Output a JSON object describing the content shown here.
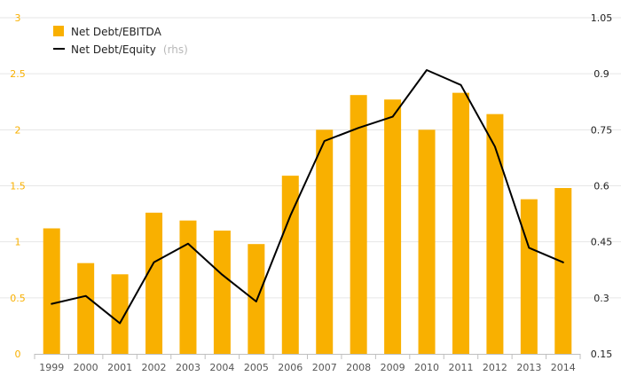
{
  "chart_data": {
    "type": "bar",
    "categories": [
      "1999",
      "2000",
      "2001",
      "2002",
      "2003",
      "2004",
      "2005",
      "2006",
      "2007",
      "2008",
      "2009",
      "2010",
      "2011",
      "2012",
      "2013",
      "2014"
    ],
    "series": [
      {
        "name": "Net Debt/EBITDA",
        "type": "bar",
        "axis": "left",
        "color": "#f9b000",
        "values": [
          1.12,
          0.81,
          0.71,
          1.26,
          1.19,
          1.1,
          0.98,
          1.59,
          2.0,
          2.31,
          2.27,
          2.0,
          2.33,
          2.14,
          1.38,
          1.48
        ]
      },
      {
        "name": "Net Debt/Equity",
        "legend_suffix": "(rhs)",
        "type": "line",
        "axis": "right",
        "color": "#000000",
        "values": [
          0.284,
          0.305,
          0.232,
          0.395,
          0.445,
          0.362,
          0.29,
          0.52,
          0.72,
          0.755,
          0.785,
          0.91,
          0.87,
          0.705,
          0.434,
          0.395
        ]
      }
    ],
    "y_left": {
      "ylim": [
        0,
        3
      ],
      "ticks": [
        "0",
        "0.5",
        "1",
        "1.5",
        "2",
        "2.5",
        "3"
      ],
      "color": "#f9b000"
    },
    "y_right": {
      "ylim": [
        0.15,
        1.05
      ],
      "ticks": [
        "0.15",
        "0.3",
        "0.45",
        "0.6",
        "0.75",
        "0.9",
        "1.05"
      ],
      "color": "#222222"
    },
    "grid": true,
    "legend_position": "top-left"
  }
}
